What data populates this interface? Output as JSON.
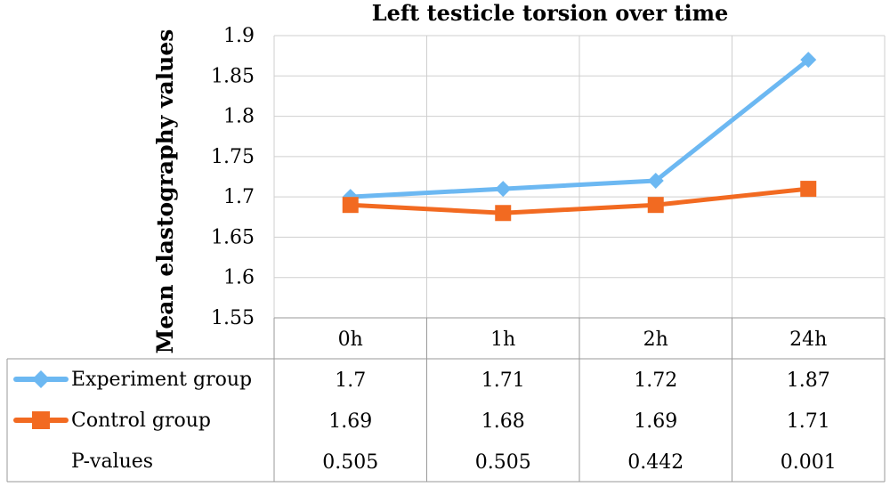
{
  "chart_data": {
    "type": "line",
    "title": "Left testicle torsion over time",
    "xlabel": "",
    "ylabel": "Mean elastography values",
    "categories": [
      "0h",
      "1h",
      "2h",
      "24h"
    ],
    "ylim": [
      1.55,
      1.9
    ],
    "yticks": [
      "1.9",
      "1.85",
      "1.8",
      "1.75",
      "1.7",
      "1.65",
      "1.6",
      "1.55"
    ],
    "grid": true,
    "legend": "data-table",
    "series": [
      {
        "name": "Experiment group",
        "values": [
          1.7,
          1.71,
          1.72,
          1.87
        ],
        "labels": [
          "1.7",
          "1.71",
          "1.72",
          "1.87"
        ],
        "color": "#6cb8f2",
        "marker": "diamond"
      },
      {
        "name": "Control group",
        "values": [
          1.69,
          1.68,
          1.69,
          1.71
        ],
        "labels": [
          "1.69",
          "1.68",
          "1.69",
          "1.71"
        ],
        "color": "#f26a21",
        "marker": "square"
      }
    ],
    "table_rows": [
      {
        "label": "P-values",
        "values": [
          "0.505",
          "0.505",
          "0.442",
          "0.001"
        ]
      }
    ]
  }
}
